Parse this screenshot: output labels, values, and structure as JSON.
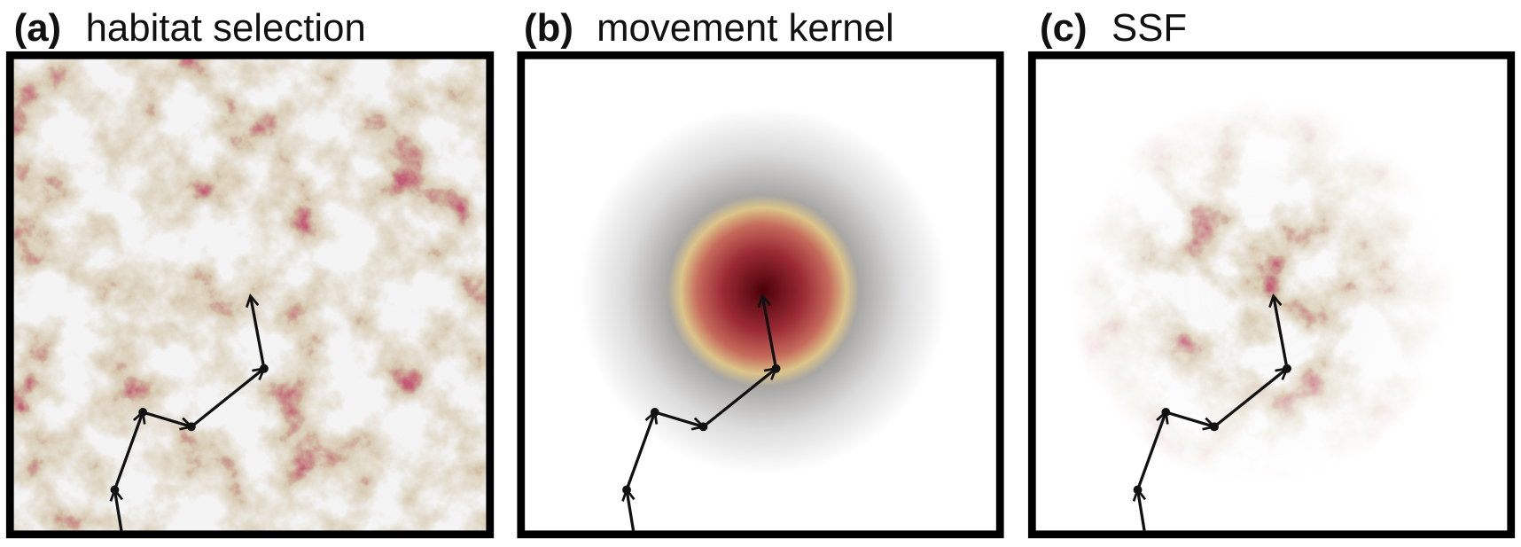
{
  "panels": [
    {
      "label": "(a)",
      "title": "habitat selection"
    },
    {
      "label": "(b)",
      "title": "movement kernel"
    },
    {
      "label": "(c)",
      "title": "SSF"
    }
  ]
}
